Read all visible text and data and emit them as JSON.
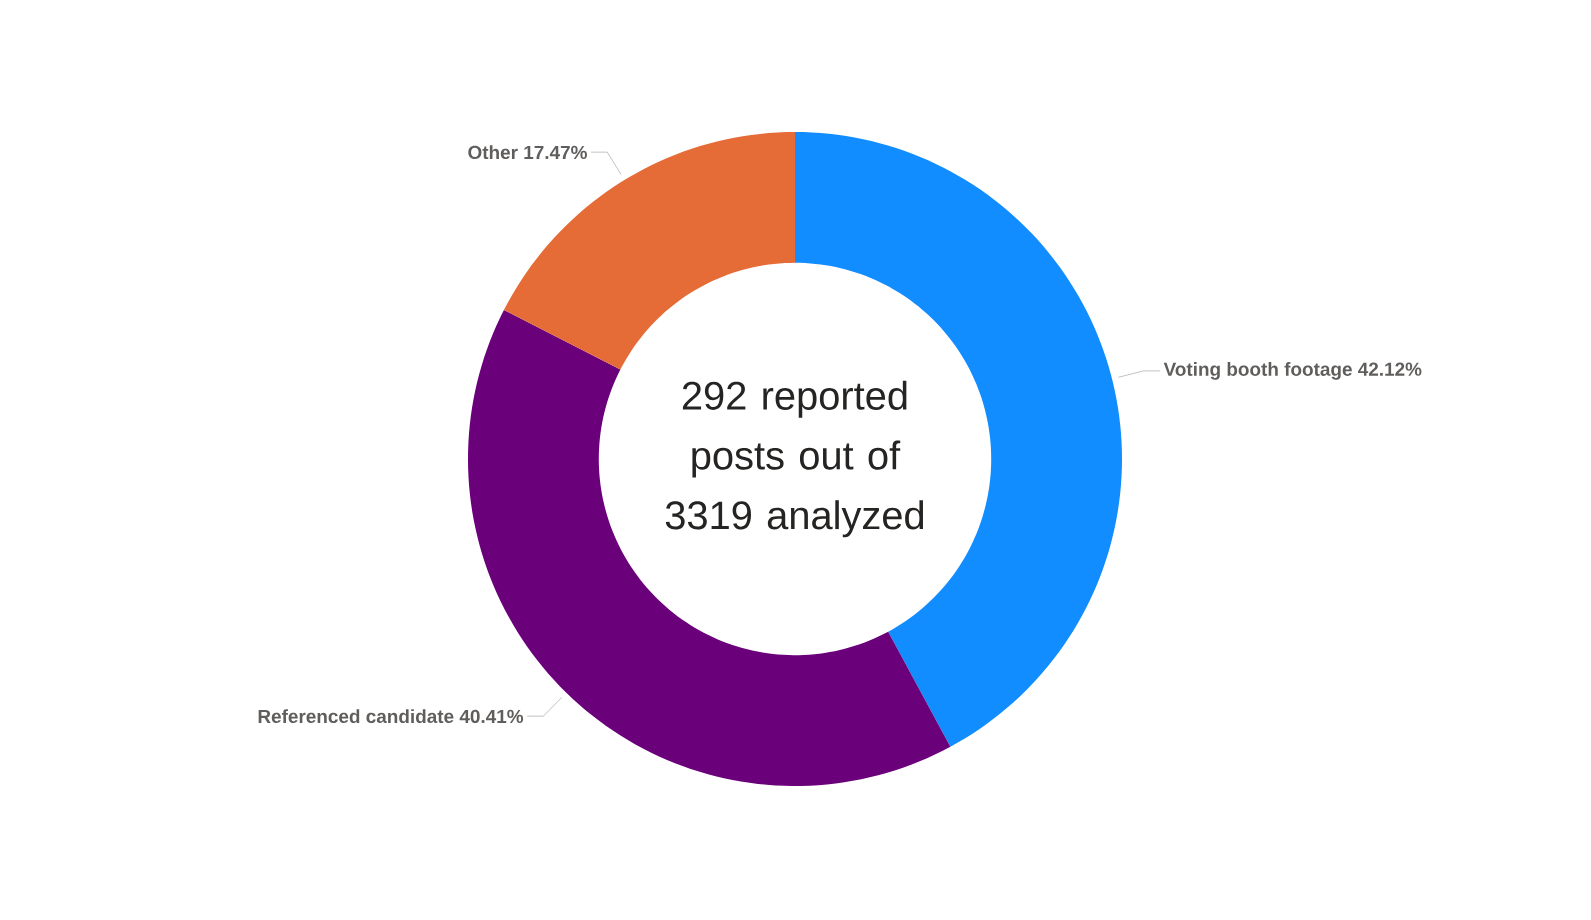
{
  "chart_data": {
    "type": "donut",
    "categories": [
      "Voting booth footage",
      "Referenced candidate",
      "Other"
    ],
    "values": [
      42.12,
      40.41,
      17.47
    ],
    "value_labels": [
      "42.12%",
      "40.41%",
      "17.47%"
    ],
    "colors": [
      "#118dff",
      "#6b007b",
      "#e66c37"
    ],
    "annotations": [
      "292 reported posts out of 3319 analyzed"
    ]
  }
}
